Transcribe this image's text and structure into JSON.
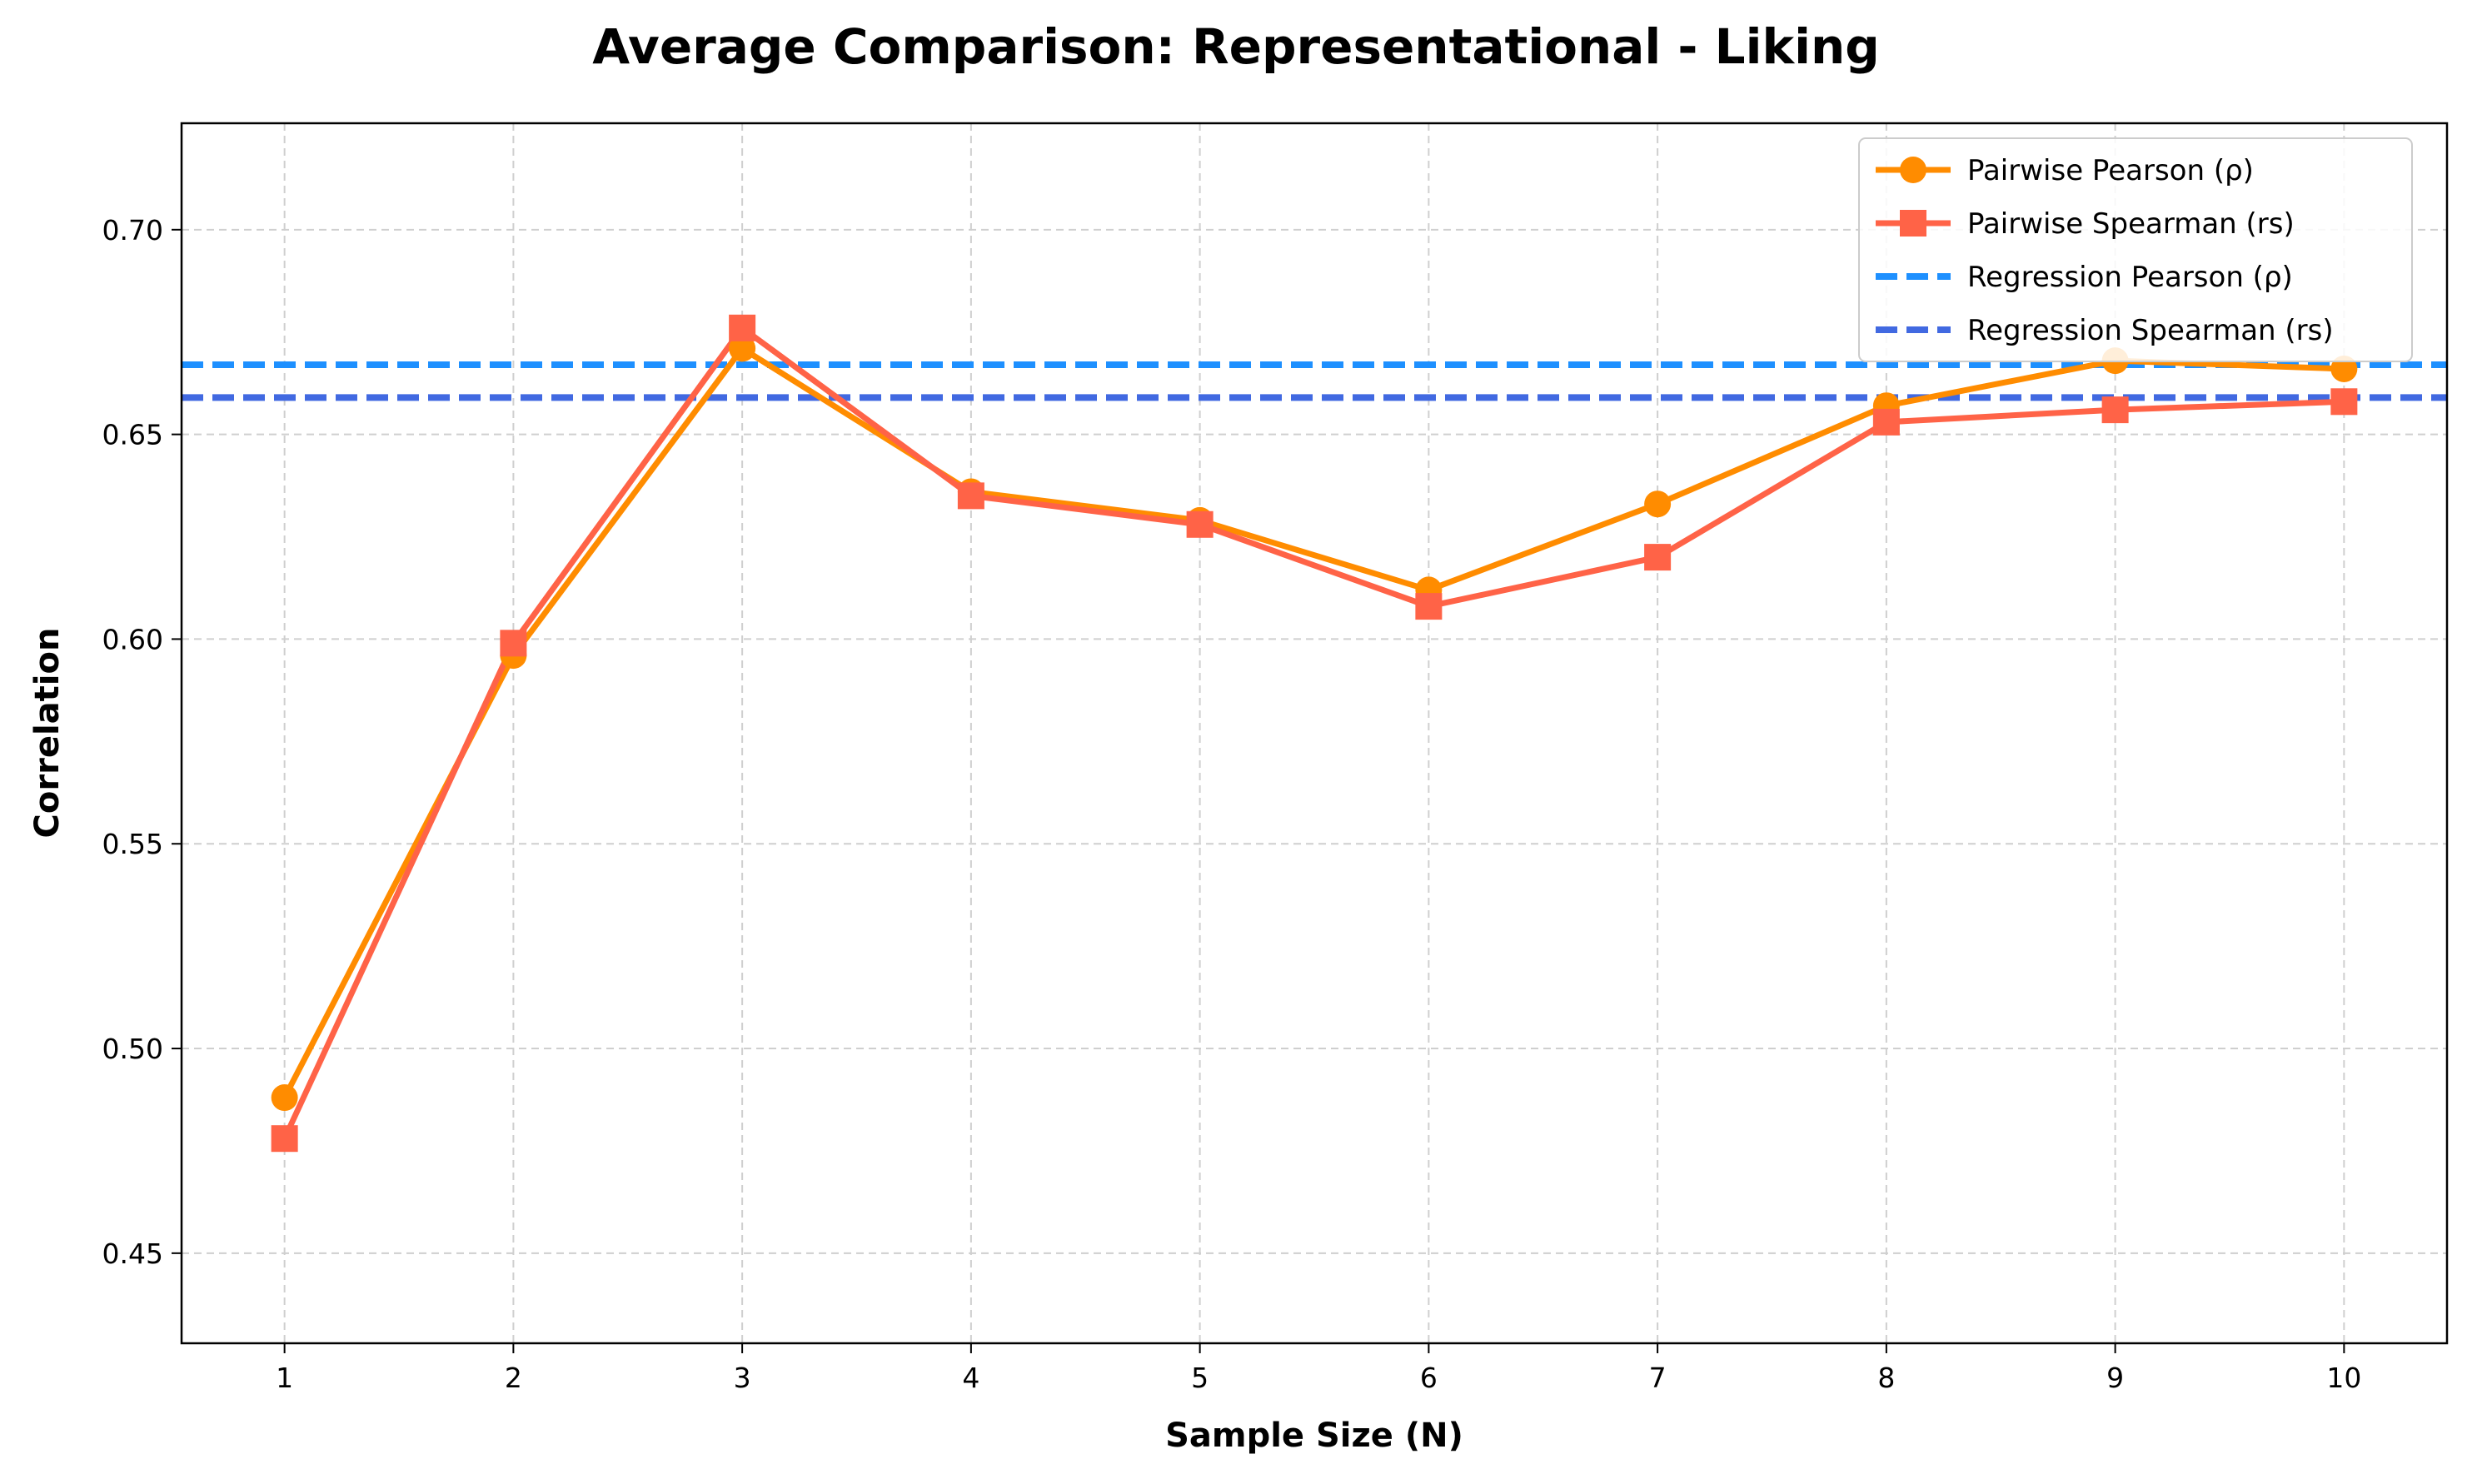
{
  "chart_data": {
    "type": "line",
    "title": "Average Comparison: Representational - Liking",
    "xlabel": "Sample Size (N)",
    "ylabel": "Correlation",
    "x": [
      1,
      2,
      3,
      4,
      5,
      6,
      7,
      8,
      9,
      10
    ],
    "xlim": [
      0.55,
      10.45
    ],
    "ylim": [
      0.428,
      0.726
    ],
    "yticks": [
      "0.45",
      "0.50",
      "0.55",
      "0.60",
      "0.65",
      "0.70"
    ],
    "xticks": [
      "1",
      "2",
      "3",
      "4",
      "5",
      "6",
      "7",
      "8",
      "9",
      "10"
    ],
    "grid": true,
    "legend_position": "top-right",
    "series": [
      {
        "name": "Pairwise Pearson (ρ)",
        "kind": "line",
        "marker": "circle",
        "color": "#FF8C00",
        "values": [
          0.488,
          0.596,
          0.671,
          0.636,
          0.629,
          0.612,
          0.633,
          0.657,
          0.668,
          0.666
        ]
      },
      {
        "name": "Pairwise Spearman (rs)",
        "kind": "line",
        "marker": "square",
        "color": "#FF6347",
        "values": [
          0.478,
          0.599,
          0.676,
          0.635,
          0.628,
          0.608,
          0.62,
          0.653,
          0.656,
          0.658
        ]
      },
      {
        "name": "Regression Pearson (ρ)",
        "kind": "hline",
        "color": "#1E90FF",
        "value": 0.667
      },
      {
        "name": "Regression Spearman (rs)",
        "kind": "hline",
        "color": "#4169E1",
        "value": 0.659
      }
    ]
  }
}
